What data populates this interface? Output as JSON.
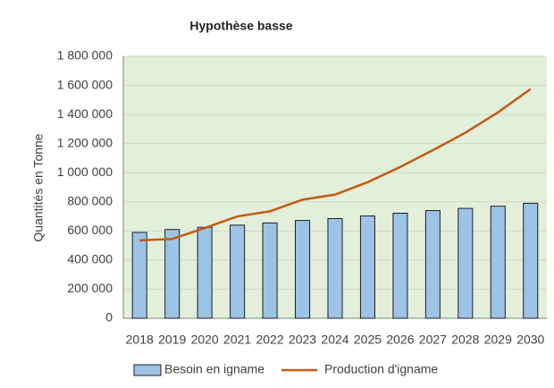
{
  "chart_data": {
    "type": "bar",
    "title": "Hypothèse basse",
    "y_label": "Quantités  en Tonne",
    "categories": [
      "2018",
      "2019",
      "2020",
      "2021",
      "2022",
      "2023",
      "2024",
      "2025",
      "2026",
      "2027",
      "2028",
      "2029",
      "2030"
    ],
    "series": [
      {
        "name": "Besoin en igname",
        "type": "bar",
        "color": "#9dc3e6",
        "values": [
          590000,
          610000,
          625000,
          640000,
          655000,
          672000,
          685000,
          703000,
          722000,
          740000,
          755000,
          770000,
          790000
        ]
      },
      {
        "name": "Production d'igname",
        "type": "line",
        "color": "#c55a11",
        "values": [
          535000,
          545000,
          620000,
          700000,
          735000,
          815000,
          850000,
          935000,
          1040000,
          1155000,
          1275000,
          1415000,
          1575000
        ]
      }
    ],
    "ylim": [
      0,
      1800000
    ],
    "yticks": [
      0,
      {
        "value": 200000,
        "label": "200 000"
      },
      {
        "value": 400000,
        "label": "400 000"
      },
      {
        "value": 600000,
        "label": "600 000"
      },
      {
        "value": 800000,
        "label": "800 000"
      },
      {
        "value": 1000000,
        "label": "1 000 000"
      },
      {
        "value": 1200000,
        "label": "1 200 000"
      },
      {
        "value": 1400000,
        "label": "1 400 000"
      },
      {
        "value": 1600000,
        "label": "1 600 000"
      },
      {
        "value": 1800000,
        "label": "1 800 000"
      }
    ],
    "grid": true,
    "legend": "bottom"
  }
}
